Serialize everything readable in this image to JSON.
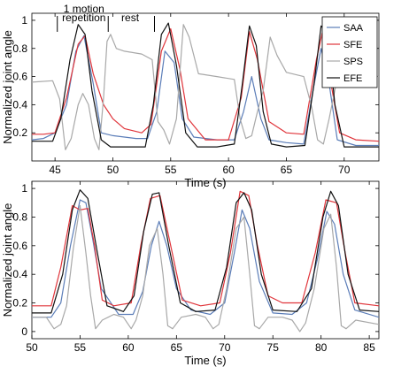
{
  "chart_data": [
    {
      "type": "line",
      "xlabel": "Time (s)",
      "ylabel": "Normalized joint angle",
      "xlim": [
        43,
        73
      ],
      "ylim": [
        0,
        1.05
      ],
      "xticks": [
        45,
        50,
        55,
        60,
        65,
        70
      ],
      "yticks": [
        0.2,
        0.4,
        0.6,
        0.8,
        1
      ],
      "grid": false,
      "legend": {
        "position": "top-right",
        "entries": [
          "SAA",
          "SFE",
          "SPS",
          "EFE"
        ]
      },
      "annotations": [
        {
          "text": "1 motion",
          "x": 47.5,
          "y": 1.08
        },
        {
          "text": "repetition",
          "x": 47.5,
          "y": 1.02
        },
        {
          "text": "rest",
          "x": 51.5,
          "y": 1.02
        }
      ],
      "markers": [
        45.2,
        49.6,
        53.6
      ],
      "series": [
        {
          "name": "SAA",
          "color": "#5b7db8",
          "x": [
            43,
            44,
            45,
            46,
            46.8,
            47.5,
            48.3,
            49,
            50,
            52,
            53,
            53.8,
            54.5,
            55.3,
            56,
            57,
            59,
            60.5,
            61.3,
            62,
            62.8,
            63.5,
            65,
            66.5,
            67.3,
            68,
            68.7,
            69.4,
            71,
            73
          ],
          "y": [
            0.15,
            0.16,
            0.2,
            0.4,
            0.78,
            0.89,
            0.55,
            0.2,
            0.18,
            0.16,
            0.16,
            0.35,
            0.78,
            0.7,
            0.3,
            0.17,
            0.15,
            0.15,
            0.35,
            0.6,
            0.3,
            0.15,
            0.13,
            0.12,
            0.5,
            0.8,
            0.55,
            0.15,
            0.11,
            0.11
          ]
        },
        {
          "name": "SFE",
          "color": "#e0353b",
          "x": [
            43,
            44,
            45,
            46,
            47,
            47.6,
            48.3,
            49.2,
            50,
            51,
            52.5,
            53.3,
            54.2,
            55,
            55.8,
            56.5,
            58,
            60,
            61.1,
            61.8,
            62.5,
            63.5,
            65,
            66.5,
            67.6,
            68.1,
            68.8,
            69.6,
            71,
            73
          ],
          "y": [
            0.19,
            0.19,
            0.2,
            0.45,
            0.83,
            0.89,
            0.62,
            0.4,
            0.3,
            0.23,
            0.2,
            0.26,
            0.78,
            0.94,
            0.65,
            0.3,
            0.15,
            0.15,
            0.45,
            0.92,
            0.72,
            0.28,
            0.2,
            0.19,
            0.72,
            0.91,
            0.58,
            0.2,
            0.15,
            0.14
          ]
        },
        {
          "name": "SPS",
          "color": "#a8a8a8",
          "x": [
            43,
            44.8,
            45.4,
            45.9,
            46.4,
            47,
            47.4,
            47.9,
            48.4,
            48.8,
            49.2,
            49.5,
            49.8,
            50.3,
            51,
            52.5,
            53.4,
            53.9,
            54.4,
            54.9,
            55.5,
            56.1,
            56.6,
            57.4,
            59,
            60.5,
            61,
            61.5,
            62,
            62.5,
            63,
            63.6,
            64.2,
            65,
            66.5,
            67.2,
            67.7,
            68.2,
            68.7,
            69.3,
            69.9,
            70.3,
            71,
            73
          ],
          "y": [
            0.56,
            0.57,
            0.44,
            0.08,
            0.16,
            0.4,
            0.48,
            0.4,
            0.16,
            0.08,
            0.45,
            0.85,
            0.9,
            0.8,
            0.78,
            0.76,
            0.72,
            0.28,
            0.22,
            0.12,
            0.3,
            0.97,
            0.88,
            0.62,
            0.6,
            0.58,
            0.3,
            0.16,
            0.18,
            0.35,
            0.5,
            0.88,
            0.75,
            0.63,
            0.6,
            0.38,
            0.15,
            0.12,
            0.3,
            0.55,
            0.85,
            0.68,
            0.62,
            0.6
          ]
        },
        {
          "name": "EFE",
          "color": "#111111",
          "x": [
            43,
            44.8,
            45.5,
            46.3,
            47,
            47.6,
            48.2,
            49,
            49.8,
            51,
            52.8,
            53.5,
            54.2,
            54.8,
            55.5,
            56.3,
            57.3,
            59,
            60.5,
            61.2,
            61.8,
            62.4,
            63,
            63.7,
            65,
            66.6,
            67.4,
            68,
            68.6,
            69.2,
            70,
            73
          ],
          "y": [
            0.14,
            0.14,
            0.3,
            0.72,
            0.97,
            0.9,
            0.5,
            0.15,
            0.1,
            0.1,
            0.1,
            0.4,
            0.9,
            0.98,
            0.68,
            0.2,
            0.1,
            0.1,
            0.12,
            0.55,
            0.96,
            0.82,
            0.35,
            0.12,
            0.1,
            0.11,
            0.55,
            0.96,
            0.9,
            0.4,
            0.1,
            0.1
          ]
        }
      ]
    },
    {
      "type": "line",
      "xlabel": "Time (s)",
      "ylabel": "Normalized joint angle",
      "xlim": [
        50,
        86
      ],
      "ylim": [
        -0.05,
        1.05
      ],
      "xticks": [
        50,
        55,
        60,
        65,
        70,
        75,
        80,
        85
      ],
      "yticks": [
        0,
        0.2,
        0.4,
        0.6,
        0.8,
        1
      ],
      "grid": false,
      "series": [
        {
          "name": "SAA",
          "color": "#5b7db8",
          "x": [
            50,
            52,
            53,
            54,
            55,
            55.6,
            56.3,
            57.2,
            59,
            60.5,
            61.5,
            62.4,
            63.2,
            64,
            65,
            66.5,
            68.5,
            70,
            71,
            71.8,
            72.6,
            73.6,
            75,
            77,
            78.5,
            79.6,
            80.6,
            81.4,
            82.3,
            83.5,
            86
          ],
          "y": [
            0.1,
            0.1,
            0.2,
            0.6,
            0.92,
            0.9,
            0.65,
            0.3,
            0.12,
            0.12,
            0.28,
            0.6,
            0.77,
            0.6,
            0.3,
            0.15,
            0.12,
            0.2,
            0.55,
            0.85,
            0.72,
            0.35,
            0.13,
            0.12,
            0.2,
            0.5,
            0.84,
            0.75,
            0.4,
            0.15,
            0.1
          ]
        },
        {
          "name": "SFE",
          "color": "#e0353b",
          "x": [
            50,
            52,
            53,
            54.2,
            55,
            55.8,
            56.5,
            57.3,
            58.5,
            60.3,
            61.3,
            62.3,
            63.3,
            64.4,
            65.6,
            67.5,
            69.5,
            70.6,
            71.6,
            72.5,
            73.4,
            74.5,
            76,
            78,
            79.4,
            80.5,
            81.6,
            82.5,
            83.5,
            86
          ],
          "y": [
            0.18,
            0.18,
            0.45,
            0.88,
            0.85,
            0.86,
            0.6,
            0.22,
            0.18,
            0.2,
            0.6,
            0.93,
            0.95,
            0.6,
            0.22,
            0.18,
            0.2,
            0.55,
            0.98,
            0.95,
            0.6,
            0.25,
            0.2,
            0.2,
            0.55,
            0.92,
            0.9,
            0.55,
            0.2,
            0.18
          ]
        },
        {
          "name": "SPS",
          "color": "#a8a8a8",
          "x": [
            50,
            51.5,
            52.3,
            53,
            53.6,
            54.3,
            55,
            55.6,
            56.1,
            56.6,
            57.3,
            58.5,
            59.5,
            60.3,
            60.8,
            61.5,
            62.2,
            63,
            63.6,
            64.1,
            64.6,
            65.5,
            67,
            68,
            68.8,
            69.4,
            70.2,
            71.2,
            72,
            72.6,
            73.1,
            73.6,
            74.5,
            76,
            77,
            77.8,
            78.4,
            79.3,
            80.3,
            81,
            81.6,
            82.1,
            82.6,
            83.6,
            86
          ],
          "y": [
            0.1,
            0.1,
            0.02,
            0.05,
            0.18,
            0.58,
            0.88,
            0.55,
            0.25,
            0.02,
            0.08,
            0.12,
            0.1,
            0.02,
            0.08,
            0.25,
            0.6,
            0.72,
            0.4,
            0.04,
            0.02,
            0.1,
            0.12,
            0.1,
            0.02,
            0.05,
            0.3,
            0.72,
            0.8,
            0.4,
            0.04,
            0.02,
            0.1,
            0.1,
            0.08,
            0.0,
            0.06,
            0.3,
            0.72,
            0.82,
            0.45,
            0.04,
            0.02,
            0.08,
            0.05
          ]
        },
        {
          "name": "EFE",
          "color": "#111111",
          "x": [
            50,
            52,
            53.2,
            54.2,
            55,
            55.8,
            56.8,
            57.8,
            59.5,
            60.6,
            61.6,
            62.5,
            63.2,
            64.2,
            65.4,
            67,
            69,
            70.2,
            71.2,
            72,
            72.8,
            73.8,
            75,
            77.5,
            79,
            80.2,
            81,
            81.8,
            82.8,
            84,
            86
          ],
          "y": [
            0.13,
            0.13,
            0.4,
            0.85,
            0.99,
            0.93,
            0.55,
            0.18,
            0.14,
            0.25,
            0.7,
            0.96,
            0.97,
            0.6,
            0.2,
            0.14,
            0.15,
            0.45,
            0.9,
            0.97,
            0.85,
            0.4,
            0.15,
            0.14,
            0.3,
            0.8,
            0.98,
            0.88,
            0.4,
            0.15,
            0.14
          ]
        }
      ]
    }
  ]
}
